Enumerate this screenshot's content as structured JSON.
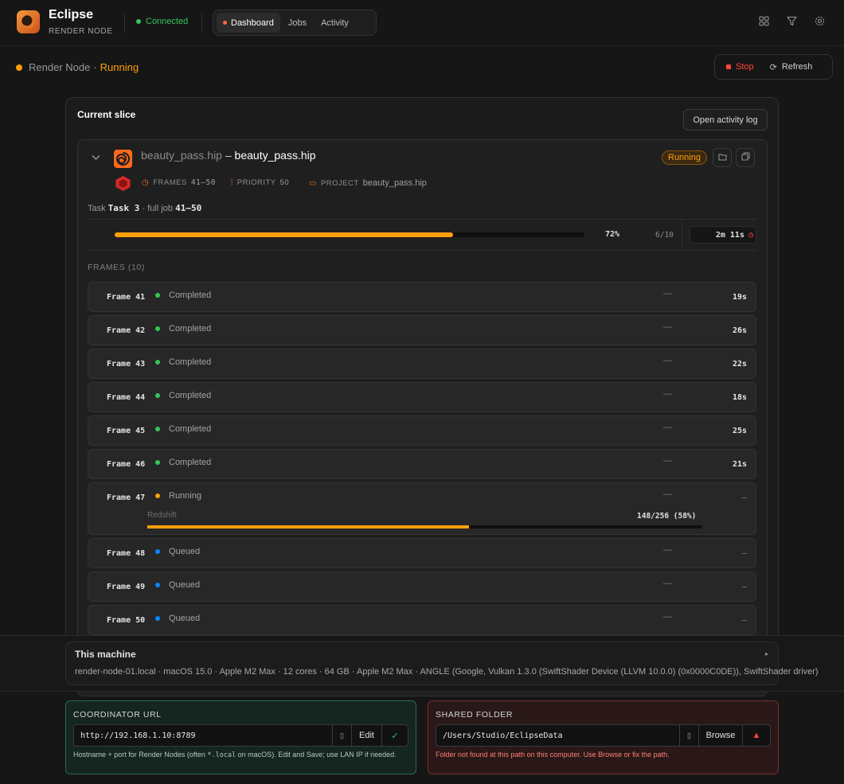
{
  "header": {
    "app_title": "Eclipse",
    "app_subtitle": "RENDER NODE",
    "connection": "Connected",
    "tabs": [
      {
        "label": "Dashboard",
        "active": true
      },
      {
        "label": "Jobs",
        "active": false
      },
      {
        "label": "Activity",
        "active": false
      }
    ],
    "icons": [
      "layout-grid-icon",
      "filter-icon",
      "settings-gear-icon"
    ]
  },
  "status": {
    "node_label": "Render Node",
    "separator": "·",
    "state": "Running",
    "stop_label": "Stop",
    "refresh_label": "Refresh"
  },
  "slice": {
    "title": "Current slice",
    "open_log_label": "Open activity log",
    "job": {
      "file_name": "beauty_pass.hip",
      "dash": "–",
      "job_name": "beauty_pass.hip",
      "status_badge": "Running",
      "frames_label": "FRAMES",
      "frames_value": "41–50",
      "priority_label": "PRIORITY",
      "priority_value": "50",
      "project_label": "PROJECT",
      "project_value": "beauty_pass.hip",
      "task_prefix": "Task",
      "task_value": "Task 3",
      "task_mid": "· full job",
      "task_range": "41–50",
      "progress": 72,
      "progress_label": "72%",
      "frame_count": "6/10",
      "eta": "2m 11s"
    },
    "frames_header": "FRAMES (10)",
    "frames": [
      {
        "name": "Frame 41",
        "status": "Completed",
        "dash": "—",
        "time": "19s"
      },
      {
        "name": "Frame 42",
        "status": "Completed",
        "dash": "—",
        "time": "26s"
      },
      {
        "name": "Frame 43",
        "status": "Completed",
        "dash": "—",
        "time": "22s"
      },
      {
        "name": "Frame 44",
        "status": "Completed",
        "dash": "—",
        "time": "18s"
      },
      {
        "name": "Frame 45",
        "status": "Completed",
        "dash": "—",
        "time": "25s"
      },
      {
        "name": "Frame 46",
        "status": "Completed",
        "dash": "—",
        "time": "21s"
      },
      {
        "name": "Frame 47",
        "status": "Running",
        "dash": "—",
        "time": "–",
        "engine": "Redshift",
        "engine_progress": "148/256 (58%)",
        "engine_fraction": 0.58
      },
      {
        "name": "Frame 48",
        "status": "Queued",
        "dash": "—",
        "time": "–"
      },
      {
        "name": "Frame 49",
        "status": "Queued",
        "dash": "—",
        "time": "–"
      },
      {
        "name": "Frame 50",
        "status": "Queued",
        "dash": "—",
        "time": "–"
      }
    ]
  },
  "machine": {
    "title": "This machine",
    "caret": "▸",
    "info": "render-node-01.local · macOS 15.0 · Apple M2 Max · 12 cores · 64 GB · Apple M2 Max · ANGLE (Google, Vulkan 1.3.0 (SwiftShader Device (LLVM 10.0.0) (0x0000C0DE)), SwiftShader driver)"
  },
  "coordinator": {
    "label": "COORDINATOR URL",
    "value": "http://192.168.1.10:8789",
    "edit_label": "Edit",
    "note_before": "Hostname + port for Render Nodes (often ",
    "note_code": "*.local",
    "note_after": " on macOS). Edit and Save; use LAN IP if needed."
  },
  "shared_folder": {
    "label": "SHARED FOLDER",
    "value": "/Users/Studio/EclipseData",
    "browse_label": "Browse",
    "note": "Folder not found at this path on this computer. Use Browse or fix the path."
  },
  "colors": {
    "accent": "#ff9f0a",
    "completed": "#34c759",
    "queued": "#0a84ff",
    "error": "#ff453a",
    "success": "#34c759"
  }
}
